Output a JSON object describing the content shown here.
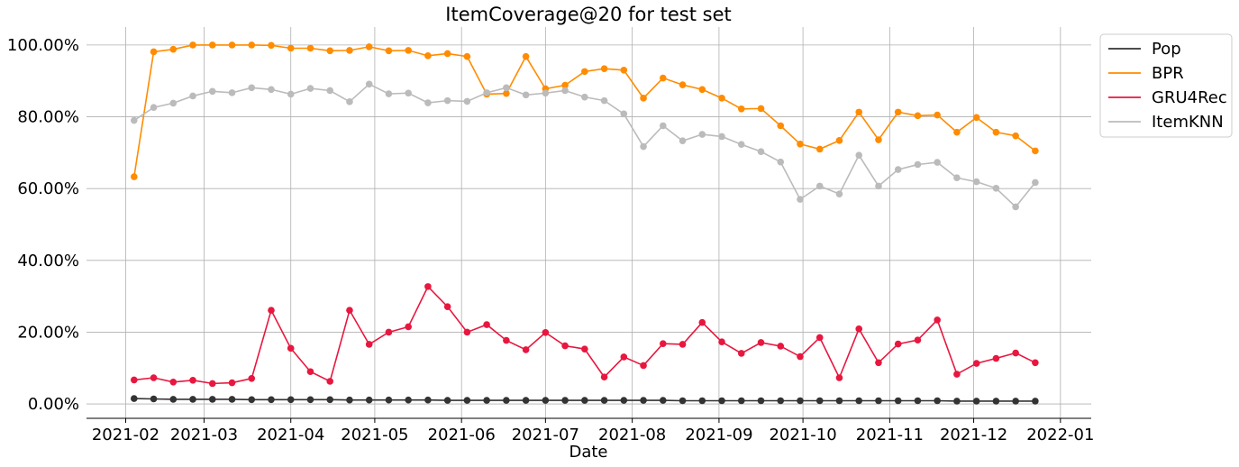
{
  "chart_data": {
    "type": "line",
    "title": "ItemCoverage@20 for test set",
    "xlabel": "Date",
    "ylabel": "",
    "x_axis": "date",
    "xlim": [
      "2021-01-18",
      "2022-01-12"
    ],
    "ylim": [
      -0.04,
      1.05
    ],
    "y_format": "percent",
    "grid": true,
    "legend": "upper-right-outside",
    "x_ticks": [
      "2021-02-01",
      "2021-03-01",
      "2021-04-01",
      "2021-05-01",
      "2021-06-01",
      "2021-07-01",
      "2021-08-01",
      "2021-09-01",
      "2021-10-01",
      "2021-11-01",
      "2021-12-01",
      "2022-01-01"
    ],
    "x_tick_labels": [
      "2021-02",
      "2021-03",
      "2021-04",
      "2021-05",
      "2021-06",
      "2021-07",
      "2021-08",
      "2021-09",
      "2021-10",
      "2021-11",
      "2021-12",
      "2022-01"
    ],
    "y_ticks": [
      0,
      0.2,
      0.4,
      0.6,
      0.8,
      1.0
    ],
    "y_tick_labels": [
      "0.00%",
      "20.00%",
      "40.00%",
      "60.00%",
      "80.00%",
      "100.00%"
    ],
    "x": [
      "2021-02-04",
      "2021-02-11",
      "2021-02-18",
      "2021-02-25",
      "2021-03-04",
      "2021-03-11",
      "2021-03-18",
      "2021-03-25",
      "2021-04-01",
      "2021-04-08",
      "2021-04-15",
      "2021-04-22",
      "2021-04-29",
      "2021-05-06",
      "2021-05-13",
      "2021-05-20",
      "2021-05-27",
      "2021-06-03",
      "2021-06-10",
      "2021-06-17",
      "2021-06-24",
      "2021-07-01",
      "2021-07-08",
      "2021-07-15",
      "2021-07-22",
      "2021-07-29",
      "2021-08-05",
      "2021-08-12",
      "2021-08-19",
      "2021-08-26",
      "2021-09-02",
      "2021-09-09",
      "2021-09-16",
      "2021-09-23",
      "2021-09-30",
      "2021-10-07",
      "2021-10-14",
      "2021-10-21",
      "2021-10-28",
      "2021-11-04",
      "2021-11-11",
      "2021-11-18",
      "2021-11-25",
      "2021-12-02",
      "2021-12-09",
      "2021-12-16",
      "2021-12-23"
    ],
    "series": [
      {
        "name": "Pop",
        "color": "#333333",
        "values": [
          0.015,
          0.014,
          0.013,
          0.013,
          0.013,
          0.013,
          0.012,
          0.012,
          0.012,
          0.012,
          0.012,
          0.011,
          0.011,
          0.011,
          0.011,
          0.011,
          0.01,
          0.01,
          0.01,
          0.01,
          0.01,
          0.01,
          0.01,
          0.01,
          0.01,
          0.01,
          0.01,
          0.01,
          0.009,
          0.009,
          0.009,
          0.009,
          0.009,
          0.009,
          0.009,
          0.009,
          0.009,
          0.009,
          0.009,
          0.009,
          0.009,
          0.009,
          0.008,
          0.008,
          0.008,
          0.008,
          0.008
        ]
      },
      {
        "name": "BPR",
        "color": "#ff8c00",
        "values": [
          0.633,
          0.981,
          0.988,
          1.0,
          1.0,
          1.0,
          1.0,
          0.999,
          0.991,
          0.991,
          0.984,
          0.985,
          0.995,
          0.984,
          0.985,
          0.97,
          0.976,
          0.968,
          0.863,
          0.865,
          0.968,
          0.878,
          0.888,
          0.926,
          0.934,
          0.93,
          0.852,
          0.908,
          0.889,
          0.876,
          0.852,
          0.822,
          0.823,
          0.775,
          0.724,
          0.71,
          0.734,
          0.813,
          0.736,
          0.813,
          0.803,
          0.805,
          0.757,
          0.798,
          0.757,
          0.747,
          0.705
        ]
      },
      {
        "name": "GRU4Rec",
        "color": "#e8173f",
        "values": [
          0.067,
          0.073,
          0.061,
          0.066,
          0.057,
          0.059,
          0.071,
          0.261,
          0.155,
          0.09,
          0.063,
          0.261,
          0.166,
          0.2,
          0.215,
          0.327,
          0.271,
          0.2,
          0.221,
          0.177,
          0.151,
          0.199,
          0.162,
          0.153,
          0.075,
          0.131,
          0.107,
          0.168,
          0.166,
          0.227,
          0.173,
          0.141,
          0.171,
          0.161,
          0.132,
          0.185,
          0.073,
          0.209,
          0.115,
          0.167,
          0.178,
          0.234,
          0.083,
          0.113,
          0.127,
          0.142,
          0.115
        ]
      },
      {
        "name": "ItemKNN",
        "color": "#bbbbbb",
        "values": [
          0.79,
          0.826,
          0.838,
          0.858,
          0.871,
          0.867,
          0.881,
          0.876,
          0.863,
          0.879,
          0.873,
          0.842,
          0.891,
          0.864,
          0.866,
          0.839,
          0.845,
          0.843,
          0.867,
          0.881,
          0.861,
          0.866,
          0.873,
          0.855,
          0.845,
          0.808,
          0.717,
          0.775,
          0.733,
          0.751,
          0.745,
          0.723,
          0.703,
          0.674,
          0.57,
          0.607,
          0.585,
          0.693,
          0.607,
          0.653,
          0.667,
          0.673,
          0.63,
          0.619,
          0.601,
          0.549,
          0.617
        ]
      }
    ]
  }
}
